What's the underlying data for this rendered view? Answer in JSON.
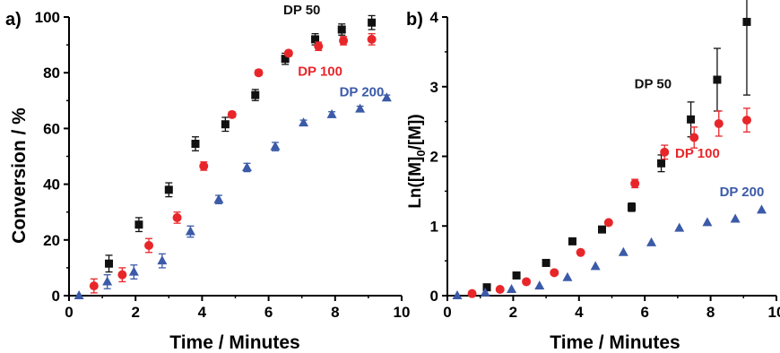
{
  "colors": {
    "dp50": "#111111",
    "dp100": "#e8262a",
    "dp200": "#3b5aa8"
  },
  "chart_data": [
    {
      "type": "scatter",
      "panel_label": "a)",
      "xlabel": "Time / Minutes",
      "ylabel": "Conversion / %",
      "xlim": [
        0,
        10
      ],
      "ylim": [
        0,
        100
      ],
      "xticks": [
        0,
        2,
        4,
        6,
        8,
        10
      ],
      "yticks": [
        0,
        20,
        40,
        60,
        80,
        100
      ],
      "grid": false,
      "series": [
        {
          "name": "DP 50",
          "marker": "square",
          "color": "#111111",
          "x": [
            1.2,
            2.1,
            3.0,
            3.8,
            4.7,
            5.6,
            6.5,
            7.4,
            8.2,
            9.1
          ],
          "y": [
            11.5,
            25.5,
            38,
            54.5,
            61.5,
            72,
            85,
            92,
            95.5,
            98
          ],
          "err": [
            3,
            2.5,
            2.5,
            2.5,
            2.5,
            2,
            2,
            2,
            2,
            2.5
          ]
        },
        {
          "name": "DP 100",
          "marker": "circle",
          "color": "#e8262a",
          "x": [
            0.75,
            1.6,
            2.4,
            3.25,
            4.05,
            4.9,
            5.7,
            6.6,
            7.5,
            8.25,
            9.1
          ],
          "y": [
            3.5,
            7.5,
            18,
            28,
            46.5,
            65,
            80,
            87,
            89.5,
            91.5,
            92
          ],
          "err": [
            2.5,
            2.5,
            2.5,
            2,
            1.5,
            1,
            1,
            1,
            1.5,
            1.5,
            2
          ]
        },
        {
          "name": "DP 200",
          "marker": "triangle",
          "color": "#3b5aa8",
          "x": [
            0.3,
            1.15,
            1.95,
            2.8,
            3.65,
            4.5,
            5.35,
            6.2,
            7.05,
            7.9,
            8.75,
            9.55
          ],
          "y": [
            0,
            5,
            8.5,
            12.5,
            23,
            34.5,
            46,
            53.5,
            62,
            65,
            67,
            71
          ],
          "err": [
            0,
            2.5,
            2.5,
            2.5,
            2,
            1.5,
            1.5,
            1.5,
            1,
            1,
            1,
            1
          ]
        }
      ],
      "annotations": [
        {
          "text": "DP 50",
          "series": 0,
          "at": [
            7.0,
            101
          ]
        },
        {
          "text": "DP 100",
          "series": 1,
          "at": [
            7.55,
            79
          ]
        },
        {
          "text": "DP 200",
          "series": 2,
          "at": [
            8.8,
            71.5
          ]
        }
      ]
    },
    {
      "type": "scatter",
      "panel_label": "b)",
      "xlabel": "Time / Minutes",
      "ylabel": "Ln([M]0/[M])",
      "xlim": [
        0,
        10
      ],
      "ylim": [
        0,
        4
      ],
      "xticks": [
        0,
        2,
        4,
        6,
        8,
        10
      ],
      "yticks": [
        0,
        1,
        2,
        3,
        4
      ],
      "grid": false,
      "series": [
        {
          "name": "DP 50",
          "marker": "square",
          "color": "#111111",
          "x": [
            1.2,
            2.1,
            3.0,
            3.8,
            4.7,
            5.6,
            6.5,
            7.4,
            8.2,
            9.1
          ],
          "y": [
            0.12,
            0.29,
            0.47,
            0.78,
            0.95,
            1.27,
            1.9,
            2.53,
            3.1,
            3.93
          ],
          "err": [
            0,
            0,
            0,
            0,
            0,
            0.06,
            0.12,
            0.25,
            0.45,
            1.05
          ]
        },
        {
          "name": "DP 100",
          "marker": "circle",
          "color": "#e8262a",
          "x": [
            0.75,
            1.6,
            2.4,
            3.25,
            4.05,
            4.9,
            5.7,
            6.6,
            7.5,
            8.25,
            9.1
          ],
          "y": [
            0.03,
            0.09,
            0.2,
            0.33,
            0.62,
            1.05,
            1.61,
            2.06,
            2.27,
            2.47,
            2.52
          ],
          "err": [
            0,
            0,
            0,
            0,
            0,
            0,
            0.06,
            0.1,
            0.15,
            0.18,
            0.17
          ]
        },
        {
          "name": "DP 200",
          "marker": "triangle",
          "color": "#3b5aa8",
          "x": [
            0.3,
            1.15,
            1.95,
            2.8,
            3.65,
            4.5,
            5.35,
            6.2,
            7.05,
            7.9,
            8.75,
            9.55
          ],
          "y": [
            0,
            0.04,
            0.09,
            0.14,
            0.26,
            0.42,
            0.62,
            0.76,
            0.97,
            1.05,
            1.1,
            1.23
          ],
          "err": [
            0,
            0,
            0,
            0,
            0,
            0,
            0,
            0,
            0,
            0,
            0,
            0
          ]
        }
      ],
      "annotations": [
        {
          "text": "DP 50",
          "series": 0,
          "at": [
            6.25,
            2.98
          ]
        },
        {
          "text": "DP 100",
          "series": 1,
          "at": [
            7.6,
            1.98
          ]
        },
        {
          "text": "DP 200",
          "series": 2,
          "at": [
            8.95,
            1.43
          ]
        }
      ]
    }
  ]
}
